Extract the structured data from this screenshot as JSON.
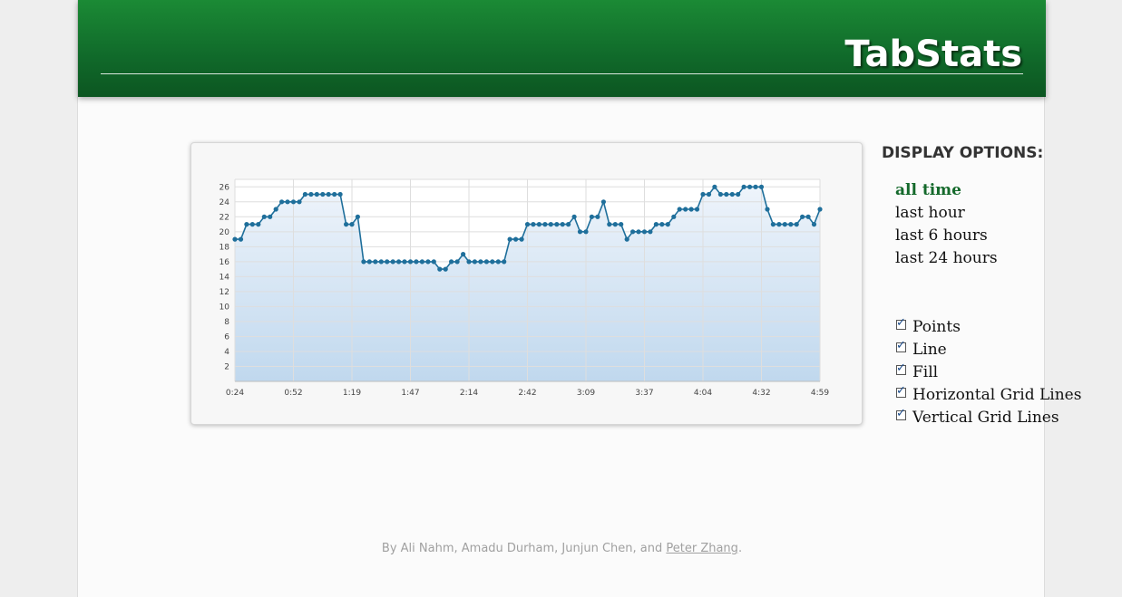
{
  "header": {
    "title": "TabStats"
  },
  "display_options": {
    "title": "DISPLAY OPTIONS:",
    "ranges": [
      {
        "label": "all time",
        "active": true
      },
      {
        "label": "last hour",
        "active": false
      },
      {
        "label": "last 6 hours",
        "active": false
      },
      {
        "label": "last 24 hours",
        "active": false
      }
    ],
    "checkboxes": [
      {
        "label": "Points",
        "checked": true
      },
      {
        "label": "Line",
        "checked": true
      },
      {
        "label": "Fill",
        "checked": true
      },
      {
        "label": "Horizontal Grid Lines",
        "checked": true
      },
      {
        "label": "Vertical Grid Lines",
        "checked": true
      }
    ]
  },
  "footer": {
    "prefix": "By Ali Nahm, Amadu Durham, Junjun Chen, and ",
    "link": "Peter Zhang",
    "suffix": "."
  },
  "colors": {
    "header_green": "#13792e",
    "line": "#1f6f9b",
    "fill_top": "#eef4fb",
    "fill_bottom": "#c0d8ee",
    "active_range": "#14692b"
  },
  "chart_data": {
    "type": "area",
    "xlim": [
      0,
      100
    ],
    "ylim": [
      0,
      27
    ],
    "yticks": [
      2,
      4,
      6,
      8,
      10,
      12,
      14,
      16,
      18,
      20,
      22,
      24,
      26
    ],
    "xtick_labels": [
      "0:24",
      "0:52",
      "1:19",
      "1:47",
      "2:14",
      "2:42",
      "3:09",
      "3:37",
      "4:04",
      "4:32",
      "4:59"
    ],
    "grid": {
      "horizontal": true,
      "vertical": true
    },
    "points": true,
    "values": [
      19,
      19,
      21,
      21,
      21,
      22,
      22,
      23,
      24,
      24,
      24,
      24,
      25,
      25,
      25,
      25,
      25,
      25,
      25,
      21,
      21,
      22,
      16,
      16,
      16,
      16,
      16,
      16,
      16,
      16,
      16,
      16,
      16,
      16,
      16,
      15,
      15,
      16,
      16,
      17,
      16,
      16,
      16,
      16,
      16,
      16,
      16,
      19,
      19,
      19,
      21,
      21,
      21,
      21,
      21,
      21,
      21,
      21,
      22,
      20,
      20,
      22,
      22,
      24,
      21,
      21,
      21,
      19,
      20,
      20,
      20,
      20,
      21,
      21,
      21,
      22,
      23,
      23,
      23,
      23,
      25,
      25,
      26,
      25,
      25,
      25,
      25,
      26,
      26,
      26,
      26,
      23,
      21,
      21,
      21,
      21,
      21,
      22,
      22,
      21,
      23
    ]
  }
}
